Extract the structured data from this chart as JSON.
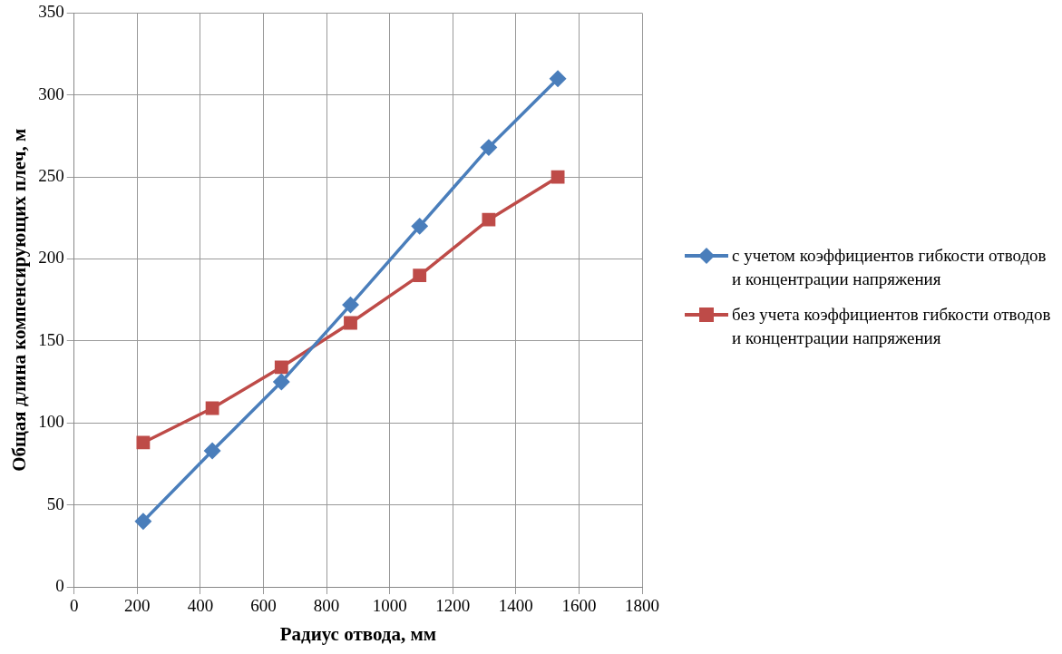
{
  "chart_data": {
    "type": "line",
    "xlabel": "Радиус отвода, мм",
    "ylabel": "Общая длина компенсирующих плеч, м",
    "series": [
      {
        "name": "с учетом коэффициентов гибкости отводов и концентрации напряжения",
        "color": "#4a7ebb",
        "marker": "diamond",
        "x": [
          219,
          438,
          657,
          876,
          1095,
          1314,
          1533
        ],
        "values": [
          40,
          83,
          125,
          172,
          220,
          268,
          310
        ]
      },
      {
        "name": "без учета коэффициентов гибкости отводов и концентрации напряжения",
        "color": "#be4b48",
        "marker": "square",
        "x": [
          219,
          438,
          657,
          876,
          1095,
          1314,
          1533
        ],
        "values": [
          88,
          109,
          134,
          161,
          190,
          224,
          250
        ]
      }
    ],
    "xlim": [
      0,
      1800
    ],
    "xticks": [
      0,
      200,
      400,
      600,
      800,
      1000,
      1200,
      1400,
      1600,
      1800
    ],
    "ylim": [
      0,
      350
    ],
    "yticks": [
      0,
      50,
      100,
      150,
      200,
      250,
      300,
      350
    ],
    "grid": true,
    "legend": "right",
    "line_style": "solid"
  }
}
